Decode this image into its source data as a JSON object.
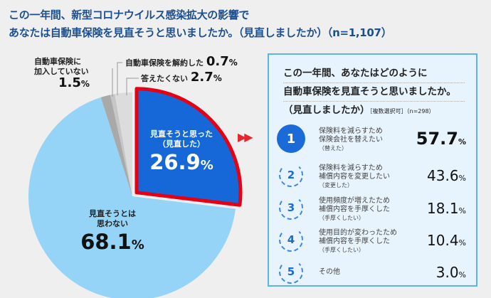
{
  "title": {
    "line1": "この一年間、新型コロナウイルス感染拡大の影響で",
    "line2": "あなたは自動車保険を見直そうと思いましたか。（見直しましたか）（n=1,107）"
  },
  "chart_data": {
    "type": "pie",
    "slices": [
      {
        "name_line1": "見直そうと思った",
        "name_line2": "（見直した）",
        "value": 26.9,
        "label": "26.9",
        "color": "#1668d8",
        "highlight": true
      },
      {
        "name_line1": "見直そうとは",
        "name_line2": "思わない",
        "value": 68.1,
        "label": "68.1",
        "color": "#96d4f7"
      },
      {
        "name_line1": "自動車保険に",
        "name_line2": "加入していない",
        "value": 1.5,
        "label": "1.5",
        "color": "#a9a9a9"
      },
      {
        "name_line1": "自動車保険を解約した",
        "name_line2": "",
        "value": 0.7,
        "label": "0.7",
        "color": "#c6c6c6"
      },
      {
        "name_line1": "答えたくない",
        "name_line2": "",
        "value": 2.7,
        "label": "2.7",
        "color": "#dcdcdc"
      }
    ],
    "unit": "%",
    "highlight_color": "#e60012"
  },
  "arrows": "▶▶",
  "panel": {
    "title1": "この一年間、あなたはどのように",
    "title2": "自動車保険を見直そうと思いましたか。",
    "title3": "（見直しましたか）",
    "note": "［複数選択可］（n=298）",
    "rows": [
      {
        "rank": "1",
        "l1": "保険料を減らすため",
        "l2": "保険会社を替えたい",
        "l3": "（替えた）",
        "value": "57.7"
      },
      {
        "rank": "2",
        "l1": "保険料を減らすため",
        "l2": "補償内容を変更したい",
        "l3": "（変更した）",
        "value": "43.6"
      },
      {
        "rank": "3",
        "l1": "使用頻度が増えたため",
        "l2": "補償内容を手厚くした",
        "l3": "（手厚くしたい）",
        "value": "18.1"
      },
      {
        "rank": "4",
        "l1": "使用目的が変わったため",
        "l2": "補償内容を手厚くした",
        "l3": "（手厚くしたい）",
        "value": "10.4"
      },
      {
        "rank": "5",
        "l1": "その他",
        "l2": "",
        "l3": "",
        "value": "3.0"
      }
    ],
    "unit": "%"
  }
}
